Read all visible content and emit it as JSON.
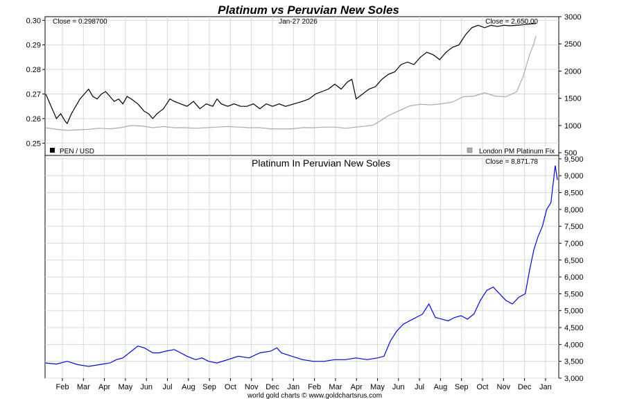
{
  "title": "Platinum vs Peruvian New Soles",
  "footer": "world gold charts © www.goldchartsrus.com",
  "colors": {
    "title": "#0000ff",
    "pen_line": "#000000",
    "platinum_line": "#aaaaaa",
    "pen_in_pt_line": "#0000ff",
    "grid": "#d8d8d8"
  },
  "chart_data": [
    {
      "type": "line",
      "date_label": "Jan-27  2026",
      "close_left": "Close = 0.298700",
      "close_right": "Close = 2,650.00",
      "legend_left": "PEN / USD",
      "legend_right": "London PM Platinum Fix",
      "grid": true,
      "y_left": {
        "ticks": [
          "0.25",
          "0.26",
          "0.27",
          "0.28",
          "0.29",
          "0.30"
        ],
        "range": [
          0.245,
          0.3015
        ]
      },
      "y_right": {
        "ticks": [
          "500",
          "1000",
          "1500",
          "2000",
          "2500",
          "3000"
        ],
        "range": [
          450,
          3000
        ]
      },
      "x_ticks": [
        "Feb",
        "Mar",
        "Apr",
        "May",
        "Jun",
        "Jul",
        "Aug",
        "Sep",
        "Oct",
        "Nov",
        "Dec",
        "Jan",
        "Feb",
        "Mar",
        "Apr",
        "May",
        "Jun",
        "Jul",
        "Aug",
        "Sep",
        "Oct",
        "Nov",
        "Dec",
        "Jan"
      ],
      "series": [
        {
          "name": "PEN / USD",
          "axis": "left",
          "points": [
            [
              0,
              0.27
            ],
            [
              0.2,
              0.266
            ],
            [
              0.5,
              0.26
            ],
            [
              0.7,
              0.262
            ],
            [
              0.9,
              0.259
            ],
            [
              1.0,
              0.258
            ],
            [
              1.2,
              0.262
            ],
            [
              1.4,
              0.265
            ],
            [
              1.6,
              0.268
            ],
            [
              1.8,
              0.27
            ],
            [
              2.0,
              0.272
            ],
            [
              2.2,
              0.269
            ],
            [
              2.4,
              0.268
            ],
            [
              2.6,
              0.27
            ],
            [
              2.8,
              0.271
            ],
            [
              3.0,
              0.269
            ],
            [
              3.2,
              0.267
            ],
            [
              3.4,
              0.268
            ],
            [
              3.6,
              0.266
            ],
            [
              3.8,
              0.269
            ],
            [
              4.0,
              0.268
            ],
            [
              4.3,
              0.266
            ],
            [
              4.6,
              0.263
            ],
            [
              4.8,
              0.262
            ],
            [
              5.0,
              0.26
            ],
            [
              5.2,
              0.262
            ],
            [
              5.5,
              0.264
            ],
            [
              5.8,
              0.268
            ],
            [
              6.0,
              0.267
            ],
            [
              6.3,
              0.266
            ],
            [
              6.6,
              0.265
            ],
            [
              6.9,
              0.267
            ],
            [
              7.2,
              0.264
            ],
            [
              7.5,
              0.266
            ],
            [
              7.8,
              0.265
            ],
            [
              8.0,
              0.268
            ],
            [
              8.2,
              0.266
            ],
            [
              8.5,
              0.265
            ],
            [
              8.8,
              0.266
            ],
            [
              9.1,
              0.265
            ],
            [
              9.4,
              0.265
            ],
            [
              9.7,
              0.266
            ],
            [
              10.0,
              0.264
            ],
            [
              10.3,
              0.266
            ],
            [
              10.6,
              0.265
            ],
            [
              10.9,
              0.266
            ],
            [
              11.2,
              0.265
            ],
            [
              11.6,
              0.266
            ],
            [
              12.0,
              0.267
            ],
            [
              12.3,
              0.268
            ],
            [
              12.6,
              0.27
            ],
            [
              12.9,
              0.271
            ],
            [
              13.2,
              0.272
            ],
            [
              13.5,
              0.274
            ],
            [
              13.8,
              0.272
            ],
            [
              14.1,
              0.275
            ],
            [
              14.3,
              0.276
            ],
            [
              14.5,
              0.268
            ],
            [
              14.8,
              0.27
            ],
            [
              15.1,
              0.272
            ],
            [
              15.4,
              0.273
            ],
            [
              15.7,
              0.276
            ],
            [
              16.0,
              0.278
            ],
            [
              16.3,
              0.279
            ],
            [
              16.6,
              0.282
            ],
            [
              16.9,
              0.283
            ],
            [
              17.2,
              0.282
            ],
            [
              17.5,
              0.285
            ],
            [
              17.8,
              0.287
            ],
            [
              18.1,
              0.286
            ],
            [
              18.4,
              0.284
            ],
            [
              18.7,
              0.287
            ],
            [
              19.0,
              0.289
            ],
            [
              19.3,
              0.29
            ],
            [
              19.6,
              0.294
            ],
            [
              19.9,
              0.297
            ],
            [
              20.2,
              0.298
            ],
            [
              20.5,
              0.297
            ],
            [
              20.8,
              0.298
            ],
            [
              21.1,
              0.2975
            ],
            [
              21.4,
              0.298
            ],
            [
              21.7,
              0.2978
            ],
            [
              22.0,
              0.298
            ],
            [
              22.3,
              0.2982
            ],
            [
              22.6,
              0.2985
            ],
            [
              22.9,
              0.2987
            ]
          ]
        },
        {
          "name": "London PM Platinum Fix",
          "axis": "right",
          "points": [
            [
              0,
              960
            ],
            [
              0.5,
              930
            ],
            [
              1.0,
              910
            ],
            [
              1.5,
              920
            ],
            [
              2.0,
              930
            ],
            [
              2.5,
              950
            ],
            [
              3.0,
              940
            ],
            [
              3.5,
              960
            ],
            [
              4.0,
              1000
            ],
            [
              4.5,
              990
            ],
            [
              5.0,
              960
            ],
            [
              5.5,
              980
            ],
            [
              6.0,
              960
            ],
            [
              6.5,
              960
            ],
            [
              7.0,
              950
            ],
            [
              7.5,
              960
            ],
            [
              8.0,
              970
            ],
            [
              8.5,
              980
            ],
            [
              9.0,
              970
            ],
            [
              9.5,
              960
            ],
            [
              10.0,
              960
            ],
            [
              10.5,
              940
            ],
            [
              11.0,
              940
            ],
            [
              11.5,
              940
            ],
            [
              12.0,
              960
            ],
            [
              12.5,
              960
            ],
            [
              13.0,
              970
            ],
            [
              13.5,
              970
            ],
            [
              14.0,
              950
            ],
            [
              14.5,
              970
            ],
            [
              15.0,
              990
            ],
            [
              15.3,
              1010
            ],
            [
              15.6,
              1080
            ],
            [
              16.0,
              1180
            ],
            [
              16.5,
              1270
            ],
            [
              17.0,
              1360
            ],
            [
              17.5,
              1390
            ],
            [
              18.0,
              1380
            ],
            [
              18.5,
              1400
            ],
            [
              19.0,
              1430
            ],
            [
              19.5,
              1530
            ],
            [
              20.0,
              1540
            ],
            [
              20.5,
              1600
            ],
            [
              21.0,
              1540
            ],
            [
              21.5,
              1530
            ],
            [
              22.0,
              1620
            ],
            [
              22.3,
              1900
            ],
            [
              22.6,
              2300
            ],
            [
              22.8,
              2500
            ],
            [
              22.9,
              2650
            ]
          ]
        }
      ]
    },
    {
      "type": "line",
      "title": "Platinum In Peruvian New Soles",
      "close": "Close = 8,871.78",
      "grid": true,
      "y_right": {
        "ticks": [
          "3,000",
          "3,500",
          "4,000",
          "4,500",
          "5,000",
          "5,500",
          "6,000",
          "6,500",
          "7,000",
          "7,500",
          "8,000",
          "8,500",
          "9,000",
          "9,500"
        ],
        "range": [
          3000,
          9600
        ]
      },
      "x_ticks": [
        "Feb",
        "Mar",
        "Apr",
        "May",
        "Jun",
        "Jul",
        "Aug",
        "Sep",
        "Oct",
        "Nov",
        "Dec",
        "Jan",
        "Feb",
        "Mar",
        "Apr",
        "May",
        "Jun",
        "Jul",
        "Aug",
        "Sep",
        "Oct",
        "Nov",
        "Dec",
        "Jan"
      ],
      "series": [
        {
          "name": "Platinum In Peruvian New Soles",
          "points": [
            [
              0,
              3450
            ],
            [
              0.5,
              3420
            ],
            [
              1.0,
              3500
            ],
            [
              1.5,
              3400
            ],
            [
              2.0,
              3350
            ],
            [
              2.5,
              3400
            ],
            [
              3.0,
              3450
            ],
            [
              3.3,
              3550
            ],
            [
              3.6,
              3600
            ],
            [
              4.0,
              3800
            ],
            [
              4.3,
              3950
            ],
            [
              4.6,
              3900
            ],
            [
              5.0,
              3750
            ],
            [
              5.3,
              3750
            ],
            [
              5.6,
              3800
            ],
            [
              6.0,
              3850
            ],
            [
              6.3,
              3750
            ],
            [
              6.6,
              3650
            ],
            [
              7.0,
              3550
            ],
            [
              7.3,
              3600
            ],
            [
              7.6,
              3500
            ],
            [
              8.0,
              3450
            ],
            [
              8.5,
              3550
            ],
            [
              9.0,
              3650
            ],
            [
              9.5,
              3600
            ],
            [
              10.0,
              3750
            ],
            [
              10.5,
              3800
            ],
            [
              10.8,
              3900
            ],
            [
              11.0,
              3750
            ],
            [
              11.5,
              3650
            ],
            [
              12.0,
              3550
            ],
            [
              12.5,
              3500
            ],
            [
              13.0,
              3500
            ],
            [
              13.5,
              3550
            ],
            [
              14.0,
              3550
            ],
            [
              14.5,
              3600
            ],
            [
              15.0,
              3550
            ],
            [
              15.5,
              3600
            ],
            [
              15.8,
              3650
            ],
            [
              16.1,
              4100
            ],
            [
              16.4,
              4400
            ],
            [
              16.7,
              4600
            ],
            [
              17.0,
              4700
            ],
            [
              17.3,
              4800
            ],
            [
              17.6,
              4900
            ],
            [
              17.9,
              5200
            ],
            [
              18.2,
              4800
            ],
            [
              18.5,
              4750
            ],
            [
              18.8,
              4700
            ],
            [
              19.1,
              4800
            ],
            [
              19.4,
              4850
            ],
            [
              19.7,
              4750
            ],
            [
              20.0,
              4900
            ],
            [
              20.3,
              5300
            ],
            [
              20.6,
              5600
            ],
            [
              20.9,
              5700
            ],
            [
              21.2,
              5500
            ],
            [
              21.5,
              5300
            ],
            [
              21.8,
              5200
            ],
            [
              22.1,
              5400
            ],
            [
              22.4,
              5500
            ],
            [
              22.6,
              6200
            ],
            [
              22.8,
              6800
            ],
            [
              23.0,
              7200
            ],
            [
              23.2,
              7500
            ],
            [
              23.4,
              8000
            ],
            [
              23.6,
              8200
            ],
            [
              23.8,
              9300
            ],
            [
              23.9,
              8872
            ]
          ]
        }
      ]
    }
  ]
}
